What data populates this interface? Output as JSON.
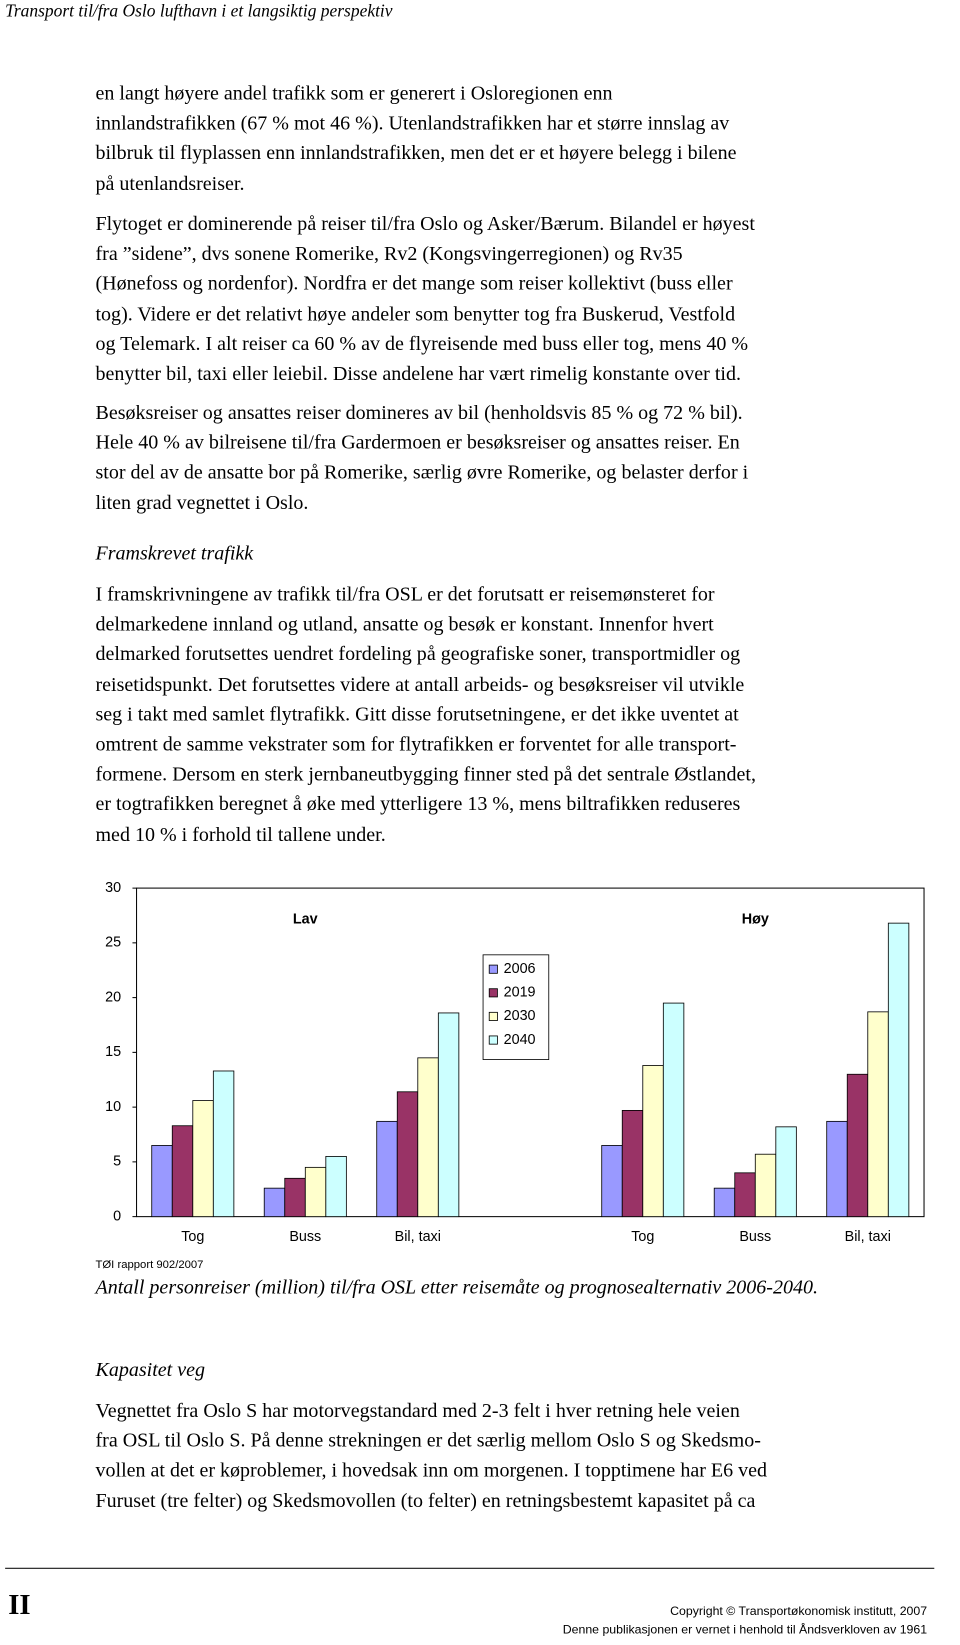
{
  "header": {
    "title": "Transport til/fra Oslo lufthavn i et langsiktig perspektiv"
  },
  "paragraphs": [
    [
      "en langt høyere andel trafikk som er generert i Osloregionen enn",
      "innlandstrafikken (67 % mot 46 %). Utenlandstrafikken har et større innslag av",
      "bilbruk til flyplassen enn innlandstrafikken, men det er et høyere belegg i bilene",
      "på utenlandsreiser."
    ],
    [
      "Flytoget er dominerende på reiser til/fra Oslo og Asker/Bærum. Bilandel er høyest",
      "fra ”sidene”, dvs sonene Romerike, Rv2 (Kongsvingerregionen) og Rv35",
      "(Hønefoss og nordenfor). Nordfra er det mange som reiser kollektivt (buss eller",
      "tog). Videre er det relativt høye andeler som benytter tog fra Buskerud, Vestfold",
      "og Telemark. I alt reiser ca 60 % av de flyreisende med buss eller tog, mens 40 %",
      "benytter bil, taxi eller leiebil. Disse andelene har vært rimelig konstante over tid."
    ],
    [
      "Besøksreiser og ansattes reiser domineres av bil (henholdsvis 85 % og 72 % bil).",
      "Hele 40 % av bilreisene til/fra Gardermoen er besøksreiser og ansattes reiser. En",
      "stor del av de ansatte bor på Romerike, særlig øvre Romerike, og belaster derfor i",
      "liten grad vegnettet i Oslo."
    ],
    [
      "I framskrivningene av trafikk til/fra OSL er det forutsatt er reisemønsteret for",
      "delmarkedene innland og utland, ansatte og besøk er konstant. Innenfor hvert",
      "delmarked forutsettes uendret fordeling på geografiske soner, transportmidler og",
      "reisetidspunkt. Det forutsettes videre at antall arbeids- og besøksreiser vil utvikle",
      "seg i takt med samlet flytrafikk. Gitt disse forutsetningene, er det ikke uventet at",
      "omtrent de samme vekstrater som for flytrafikken er forventet for alle transport-",
      "formene. Dersom en sterk jernbaneutbygging finner sted på det sentrale Østlandet,",
      "er togtrafikken beregnet å øke med ytterligere 13 %, mens biltrafikken reduseres",
      "med 10 % i forhold til tallene under."
    ],
    [
      "Vegnettet fra Oslo S har motorvegstandard med 2-3 felt i hver retning hele veien",
      "fra OSL til Oslo S. På denne strekningen er det særlig mellom Oslo S og Skedsmo-",
      "vollen at det er køproblemer, i hovedsak inn om morgenen. I topptimene har E6 ved",
      "Furuset (tre felter) og Skedsmovollen (to felter) en retningsbestemt kapasitet på ca"
    ]
  ],
  "headings": [
    "Framskrevet trafikk",
    "Kapasitet veg"
  ],
  "chart_data": {
    "type": "bar",
    "categories": [
      "Tog",
      "Buss",
      "Bil, taxi",
      null,
      "Tog",
      "Buss",
      "Bil, taxi"
    ],
    "series": [
      {
        "name": "2006",
        "color": "#9999ff",
        "values": [
          6.5,
          2.6,
          8.7,
          null,
          6.5,
          2.6,
          8.7
        ]
      },
      {
        "name": "2019",
        "color": "#993366",
        "values": [
          8.3,
          3.5,
          11.4,
          null,
          9.7,
          4.0,
          13.0
        ]
      },
      {
        "name": "2030",
        "color": "#ffffcc",
        "values": [
          10.6,
          4.5,
          14.5,
          null,
          13.8,
          5.7,
          18.7
        ]
      },
      {
        "name": "2040",
        "color": "#ccffff",
        "values": [
          13.3,
          5.5,
          18.6,
          null,
          19.5,
          8.2,
          26.8
        ]
      }
    ],
    "annotations": [
      "Lav",
      "Høy"
    ],
    "ylim": [
      0,
      30
    ],
    "yticks": [
      0,
      5,
      10,
      15,
      20,
      25,
      30
    ],
    "legend": "upper center",
    "grid": false
  },
  "source": "TØI rapport 902/2007",
  "caption": "Antall personreiser (million) til/fra OSL etter reisemåte og prognosealternativ 2006-2040.",
  "footer": {
    "page_number": "II",
    "copyright": "Copyright © Transportøkonomisk institutt, 2007",
    "notice": "Denne publikasjonen er vernet i henhold til Åndsverkloven av 1961"
  }
}
